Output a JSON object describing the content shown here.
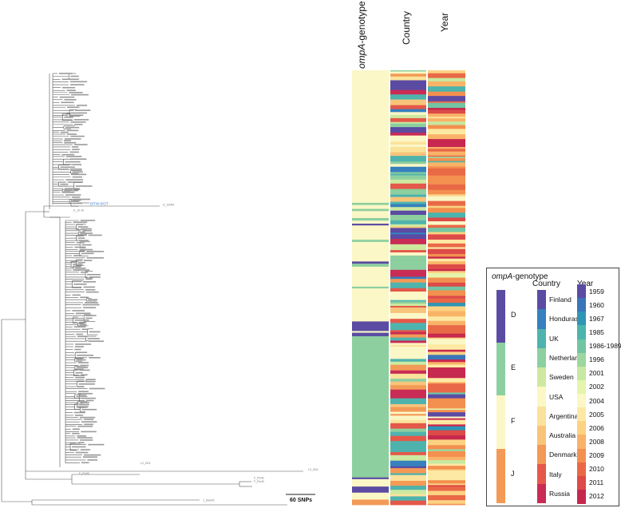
{
  "columns": {
    "genotype_italic": "ompA",
    "genotype_suffix": "-genotype",
    "country": "Country",
    "year": "Year"
  },
  "highlight_label": "B/TW-5/OT",
  "outliers": [
    "D_10054",
    "E_10-10",
    "L2_G01",
    "L2_G04",
    "F_Fin53",
    "F_Fin42",
    "F_Fin40",
    "J_Swe99"
  ],
  "scale_bar": "60 SNPs",
  "legend": {
    "genotype_title_italic": "ompA",
    "genotype_title_rest": "-genotype",
    "genotypes": [
      {
        "label": "D",
        "color": "#5b4ba3"
      },
      {
        "label": "E",
        "color": "#8dcf9f"
      },
      {
        "label": "F",
        "color": "#fbf7c6"
      },
      {
        "label": "J",
        "color": "#f39a57"
      }
    ],
    "country_title": "Country",
    "countries": [
      {
        "label": "Finland",
        "color": "#5b4ba3"
      },
      {
        "label": "Honduras",
        "color": "#3680bd"
      },
      {
        "label": "UK",
        "color": "#4fb3ad"
      },
      {
        "label": "Netherlands",
        "color": "#8dcf9f"
      },
      {
        "label": "Sweden",
        "color": "#cde9a0"
      },
      {
        "label": "USA",
        "color": "#fbf7c6"
      },
      {
        "label": "Argentina",
        "color": "#fbe29a"
      },
      {
        "label": "Australia",
        "color": "#f8c47a"
      },
      {
        "label": "Denmark",
        "color": "#f39a57"
      },
      {
        "label": "Italy",
        "color": "#e4594a"
      },
      {
        "label": "Russia",
        "color": "#c92c55"
      }
    ],
    "year_title": "Year",
    "years": [
      {
        "label": "1959",
        "color": "#5b4ba3"
      },
      {
        "label": "1960",
        "color": "#3a75b8"
      },
      {
        "label": "1967",
        "color": "#2f95b5"
      },
      {
        "label": "1985",
        "color": "#4bb4ad"
      },
      {
        "label": "1986-1989",
        "color": "#72c5a3"
      },
      {
        "label": "1996",
        "color": "#9dd69f"
      },
      {
        "label": "2001",
        "color": "#c7e8a0"
      },
      {
        "label": "2002",
        "color": "#e6f4ac"
      },
      {
        "label": "2004",
        "color": "#fbf7c6"
      },
      {
        "label": "2005",
        "color": "#fde9a3"
      },
      {
        "label": "2006",
        "color": "#fcd283"
      },
      {
        "label": "2008",
        "color": "#f9b368"
      },
      {
        "label": "2009",
        "color": "#f3904f"
      },
      {
        "label": "2010",
        "color": "#e96947"
      },
      {
        "label": "2011",
        "color": "#dd4a48"
      },
      {
        "label": "2012",
        "color": "#c7284f"
      }
    ]
  }
}
